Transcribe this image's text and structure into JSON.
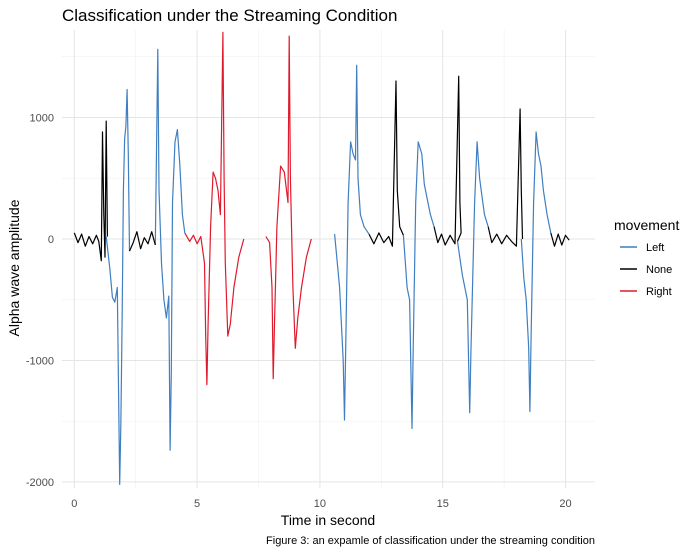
{
  "caption": "Figure 3: an expamle of classification under the streaming condition",
  "chart_data": {
    "type": "line",
    "title": "Classification under the Streaming Condition",
    "xlabel": "Time in second",
    "ylabel": "Alpha wave amplitude",
    "xlim": [
      -0.5,
      21.2
    ],
    "ylim": [
      -2050,
      1720
    ],
    "x_ticks": [
      0,
      5,
      10,
      15,
      20
    ],
    "x_tick_labels": [
      "0",
      "5",
      "10",
      "15",
      "20"
    ],
    "y_ticks": [
      -2000,
      -1000,
      0,
      1000
    ],
    "y_tick_labels": [
      "-2000",
      "-1000",
      "0",
      "1000"
    ],
    "grid": true,
    "legend": {
      "title": "movement",
      "position": "right",
      "entries": [
        "Left",
        "None",
        "Right"
      ]
    },
    "colors": {
      "Left": "#3f7fc1",
      "None": "#000000",
      "Right": "#e0192d"
    },
    "series": [
      {
        "name": "Left",
        "color": "#3f7fc1",
        "segments": [
          [
            [
              1.3,
              20
            ],
            [
              1.45,
              -250
            ],
            [
              1.55,
              -480
            ],
            [
              1.65,
              -520
            ],
            [
              1.75,
              -400
            ],
            [
              1.85,
              -2020
            ],
            [
              1.9,
              -1500
            ],
            [
              1.95,
              -600
            ],
            [
              2.0,
              400
            ],
            [
              2.05,
              820
            ],
            [
              2.1,
              930
            ],
            [
              2.15,
              1230
            ],
            [
              2.2,
              700
            ],
            [
              2.25,
              -100
            ]
          ],
          [
            [
              3.3,
              -50
            ],
            [
              3.4,
              1560
            ],
            [
              3.45,
              400
            ],
            [
              3.55,
              -200
            ],
            [
              3.65,
              -500
            ],
            [
              3.75,
              -650
            ],
            [
              3.85,
              -470
            ],
            [
              3.9,
              -1740
            ],
            [
              3.95,
              -1100
            ],
            [
              4.0,
              300
            ],
            [
              4.1,
              800
            ],
            [
              4.2,
              900
            ],
            [
              4.3,
              600
            ],
            [
              4.4,
              200
            ],
            [
              4.5,
              50
            ]
          ],
          [
            [
              10.6,
              40
            ],
            [
              10.8,
              -400
            ],
            [
              10.95,
              -1000
            ],
            [
              11.0,
              -1490
            ],
            [
              11.05,
              -900
            ],
            [
              11.15,
              300
            ],
            [
              11.25,
              800
            ],
            [
              11.35,
              700
            ],
            [
              11.45,
              650
            ],
            [
              11.5,
              1430
            ],
            [
              11.55,
              500
            ],
            [
              11.65,
              200
            ],
            [
              11.8,
              100
            ],
            [
              12.0,
              40
            ]
          ],
          [
            [
              13.4,
              30
            ],
            [
              13.55,
              -400
            ],
            [
              13.65,
              -500
            ],
            [
              13.75,
              -1560
            ],
            [
              13.8,
              -900
            ],
            [
              13.9,
              300
            ],
            [
              14.0,
              800
            ],
            [
              14.15,
              700
            ],
            [
              14.25,
              450
            ],
            [
              14.35,
              350
            ],
            [
              14.5,
              200
            ],
            [
              14.65,
              100
            ]
          ],
          [
            [
              15.6,
              -20
            ],
            [
              15.8,
              -300
            ],
            [
              16.0,
              -500
            ],
            [
              16.1,
              -1430
            ],
            [
              16.15,
              -900
            ],
            [
              16.3,
              300
            ],
            [
              16.4,
              800
            ],
            [
              16.5,
              500
            ],
            [
              16.6,
              350
            ],
            [
              16.7,
              200
            ],
            [
              16.85,
              100
            ]
          ],
          [
            [
              18.2,
              0
            ],
            [
              18.3,
              -320
            ],
            [
              18.4,
              -500
            ],
            [
              18.5,
              -900
            ],
            [
              18.55,
              -1420
            ],
            [
              18.6,
              -800
            ],
            [
              18.7,
              300
            ],
            [
              18.8,
              880
            ],
            [
              18.9,
              700
            ],
            [
              19.0,
              600
            ],
            [
              19.1,
              400
            ],
            [
              19.25,
              200
            ],
            [
              19.4,
              50
            ]
          ]
        ]
      },
      {
        "name": "None",
        "color": "#000000",
        "segments": [
          [
            [
              0.0,
              50
            ],
            [
              0.15,
              -30
            ],
            [
              0.3,
              40
            ],
            [
              0.45,
              -60
            ],
            [
              0.6,
              20
            ],
            [
              0.75,
              -40
            ],
            [
              0.9,
              30
            ],
            [
              1.0,
              -20
            ],
            [
              1.1,
              -180
            ],
            [
              1.15,
              880
            ],
            [
              1.2,
              200
            ],
            [
              1.25,
              -150
            ],
            [
              1.3,
              970
            ],
            [
              1.35,
              20
            ]
          ],
          [
            [
              2.25,
              -100
            ],
            [
              2.4,
              -30
            ],
            [
              2.55,
              60
            ],
            [
              2.7,
              -80
            ],
            [
              2.85,
              10
            ],
            [
              3.0,
              -40
            ],
            [
              3.15,
              60
            ],
            [
              3.3,
              -50
            ]
          ],
          [
            [
              12.0,
              40
            ],
            [
              12.2,
              -40
            ],
            [
              12.4,
              50
            ],
            [
              12.6,
              -30
            ],
            [
              12.8,
              20
            ],
            [
              12.95,
              -60
            ],
            [
              13.1,
              1300
            ],
            [
              13.15,
              400
            ],
            [
              13.25,
              100
            ],
            [
              13.4,
              30
            ]
          ],
          [
            [
              14.65,
              100
            ],
            [
              14.8,
              -30
            ],
            [
              14.95,
              40
            ],
            [
              15.1,
              -50
            ],
            [
              15.3,
              30
            ],
            [
              15.5,
              -40
            ],
            [
              15.65,
              1340
            ],
            [
              15.7,
              300
            ],
            [
              15.75,
              50
            ],
            [
              15.6,
              -20
            ]
          ],
          [
            [
              16.85,
              100
            ],
            [
              17.0,
              -30
            ],
            [
              17.2,
              40
            ],
            [
              17.4,
              -40
            ],
            [
              17.6,
              30
            ],
            [
              17.8,
              -20
            ],
            [
              18.0,
              -60
            ],
            [
              18.15,
              1070
            ],
            [
              18.2,
              400
            ],
            [
              18.25,
              0
            ]
          ],
          [
            [
              19.4,
              50
            ],
            [
              19.55,
              -60
            ],
            [
              19.7,
              40
            ],
            [
              19.85,
              -50
            ],
            [
              20.0,
              30
            ],
            [
              20.15,
              -10
            ]
          ]
        ]
      },
      {
        "name": "Right",
        "color": "#e0192d",
        "segments": [
          [
            [
              4.5,
              50
            ],
            [
              4.7,
              -20
            ],
            [
              4.85,
              30
            ],
            [
              5.0,
              -40
            ],
            [
              5.15,
              20
            ],
            [
              5.3,
              -200
            ],
            [
              5.35,
              -800
            ],
            [
              5.4,
              -1200
            ],
            [
              5.45,
              -700
            ],
            [
              5.55,
              100
            ],
            [
              5.65,
              550
            ],
            [
              5.75,
              500
            ],
            [
              5.85,
              400
            ],
            [
              5.95,
              200
            ],
            [
              6.05,
              1700
            ],
            [
              6.1,
              500
            ],
            [
              6.15,
              -200
            ],
            [
              6.25,
              -800
            ],
            [
              6.35,
              -700
            ],
            [
              6.5,
              -400
            ],
            [
              6.7,
              -150
            ],
            [
              6.9,
              0
            ]
          ],
          [
            [
              7.8,
              20
            ],
            [
              7.95,
              -30
            ],
            [
              8.05,
              -400
            ],
            [
              8.1,
              -1150
            ],
            [
              8.15,
              -700
            ],
            [
              8.25,
              100
            ],
            [
              8.4,
              600
            ],
            [
              8.55,
              550
            ],
            [
              8.7,
              300
            ],
            [
              8.75,
              1670
            ],
            [
              8.8,
              500
            ],
            [
              8.9,
              -400
            ],
            [
              9.0,
              -900
            ],
            [
              9.1,
              -650
            ],
            [
              9.25,
              -400
            ],
            [
              9.45,
              -150
            ],
            [
              9.65,
              0
            ]
          ]
        ]
      }
    ]
  }
}
